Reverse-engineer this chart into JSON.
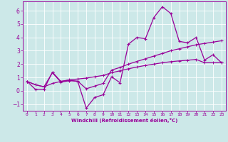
{
  "x": [
    0,
    1,
    2,
    3,
    4,
    5,
    6,
    7,
    8,
    9,
    10,
    11,
    12,
    13,
    14,
    15,
    16,
    17,
    18,
    19,
    20,
    21,
    22,
    23
  ],
  "y_main": [
    0.7,
    0.1,
    0.1,
    1.4,
    0.7,
    0.8,
    0.7,
    -1.3,
    -0.5,
    -0.3,
    1.05,
    0.6,
    3.5,
    4.0,
    3.9,
    5.5,
    6.3,
    5.8,
    3.7,
    3.6,
    4.0,
    2.3,
    2.7,
    2.1
  ],
  "y_trend1": [
    0.7,
    0.45,
    0.3,
    1.35,
    0.65,
    0.75,
    0.72,
    0.15,
    0.35,
    0.55,
    1.55,
    1.75,
    2.0,
    2.2,
    2.4,
    2.6,
    2.8,
    3.0,
    3.15,
    3.3,
    3.45,
    3.55,
    3.65,
    3.75
  ],
  "y_trend2": [
    0.7,
    0.45,
    0.3,
    0.55,
    0.7,
    0.82,
    0.88,
    0.95,
    1.05,
    1.15,
    1.35,
    1.5,
    1.65,
    1.78,
    1.9,
    2.0,
    2.1,
    2.18,
    2.24,
    2.29,
    2.35,
    2.1,
    2.1,
    2.1
  ],
  "color": "#990099",
  "background": "#cce8e8",
  "grid_color": "#ffffff",
  "ylim": [
    -1.5,
    6.7
  ],
  "xlim": [
    -0.5,
    23.5
  ],
  "yticks": [
    -1,
    0,
    1,
    2,
    3,
    4,
    5,
    6
  ],
  "xlabel": "Windchill (Refroidissement éolien,°C)",
  "linewidth": 0.9
}
